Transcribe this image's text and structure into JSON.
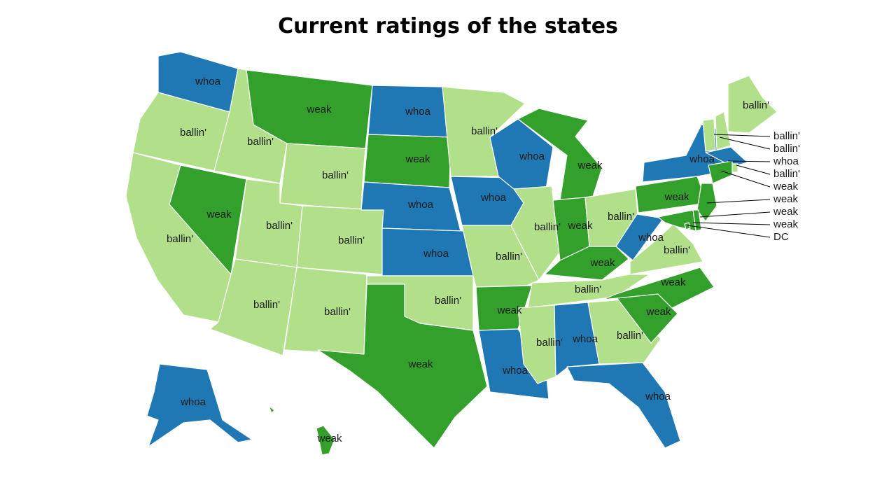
{
  "title": "Current ratings of the states",
  "colors": {
    "whoa": "#1f78b4",
    "weak": "#33a02c",
    "ballin": "#b2df8a"
  },
  "states": [
    {
      "id": "WA",
      "rating": "whoa",
      "label": "whoa"
    },
    {
      "id": "OR",
      "rating": "ballin",
      "label": "ballin'"
    },
    {
      "id": "CA",
      "rating": "ballin",
      "label": "ballin'"
    },
    {
      "id": "NV",
      "rating": "weak",
      "label": "weak"
    },
    {
      "id": "ID",
      "rating": "ballin",
      "label": "ballin'"
    },
    {
      "id": "MT",
      "rating": "weak",
      "label": "weak"
    },
    {
      "id": "WY",
      "rating": "ballin",
      "label": "ballin'"
    },
    {
      "id": "UT",
      "rating": "ballin",
      "label": "ballin'"
    },
    {
      "id": "CO",
      "rating": "ballin",
      "label": "ballin'"
    },
    {
      "id": "AZ",
      "rating": "ballin",
      "label": "ballin'"
    },
    {
      "id": "NM",
      "rating": "ballin",
      "label": "ballin'"
    },
    {
      "id": "ND",
      "rating": "whoa",
      "label": "whoa"
    },
    {
      "id": "SD",
      "rating": "weak",
      "label": "weak"
    },
    {
      "id": "NE",
      "rating": "whoa",
      "label": "whoa"
    },
    {
      "id": "KS",
      "rating": "whoa",
      "label": "whoa"
    },
    {
      "id": "OK",
      "rating": "ballin",
      "label": "ballin'"
    },
    {
      "id": "TX",
      "rating": "weak",
      "label": "weak"
    },
    {
      "id": "MN",
      "rating": "ballin",
      "label": "ballin'"
    },
    {
      "id": "IA",
      "rating": "whoa",
      "label": "whoa"
    },
    {
      "id": "MO",
      "rating": "ballin",
      "label": "ballin'"
    },
    {
      "id": "AR",
      "rating": "weak",
      "label": "weak"
    },
    {
      "id": "LA",
      "rating": "whoa",
      "label": "whoa"
    },
    {
      "id": "WI",
      "rating": "whoa",
      "label": "whoa"
    },
    {
      "id": "IL",
      "rating": "ballin",
      "label": "ballin'"
    },
    {
      "id": "MI",
      "rating": "weak",
      "label": "weak"
    },
    {
      "id": "IN",
      "rating": "weak",
      "label": "weak"
    },
    {
      "id": "OH",
      "rating": "ballin",
      "label": "ballin'"
    },
    {
      "id": "KY",
      "rating": "weak",
      "label": "weak"
    },
    {
      "id": "TN",
      "rating": "ballin",
      "label": "ballin'"
    },
    {
      "id": "MS",
      "rating": "ballin",
      "label": "ballin'"
    },
    {
      "id": "AL",
      "rating": "whoa",
      "label": "whoa"
    },
    {
      "id": "GA",
      "rating": "ballin",
      "label": "ballin'"
    },
    {
      "id": "FL",
      "rating": "whoa",
      "label": "whoa"
    },
    {
      "id": "SC",
      "rating": "weak",
      "label": "weak"
    },
    {
      "id": "NC",
      "rating": "weak",
      "label": "weak"
    },
    {
      "id": "VA",
      "rating": "ballin",
      "label": "ballin'"
    },
    {
      "id": "WV",
      "rating": "whoa",
      "label": "whoa"
    },
    {
      "id": "PA",
      "rating": "weak",
      "label": "weak"
    },
    {
      "id": "NY",
      "rating": "whoa",
      "label": "whoa"
    },
    {
      "id": "ME",
      "rating": "ballin",
      "label": "ballin'"
    },
    {
      "id": "AK",
      "rating": "whoa",
      "label": "whoa"
    },
    {
      "id": "HI",
      "rating": "weak",
      "label": "weak"
    }
  ],
  "callouts": [
    {
      "id": "VT",
      "rating": "ballin",
      "label": "ballin'"
    },
    {
      "id": "NH",
      "rating": "ballin",
      "label": "ballin'"
    },
    {
      "id": "MA",
      "rating": "whoa",
      "label": "whoa"
    },
    {
      "id": "RI",
      "rating": "ballin",
      "label": "ballin'"
    },
    {
      "id": "CT",
      "rating": "weak",
      "label": "weak"
    },
    {
      "id": "NJ",
      "rating": "weak",
      "label": "weak"
    },
    {
      "id": "DE",
      "rating": "weak",
      "label": "weak"
    },
    {
      "id": "MD",
      "rating": "weak",
      "label": "weak"
    },
    {
      "id": "DC",
      "rating": "weak",
      "label": "DC"
    }
  ]
}
